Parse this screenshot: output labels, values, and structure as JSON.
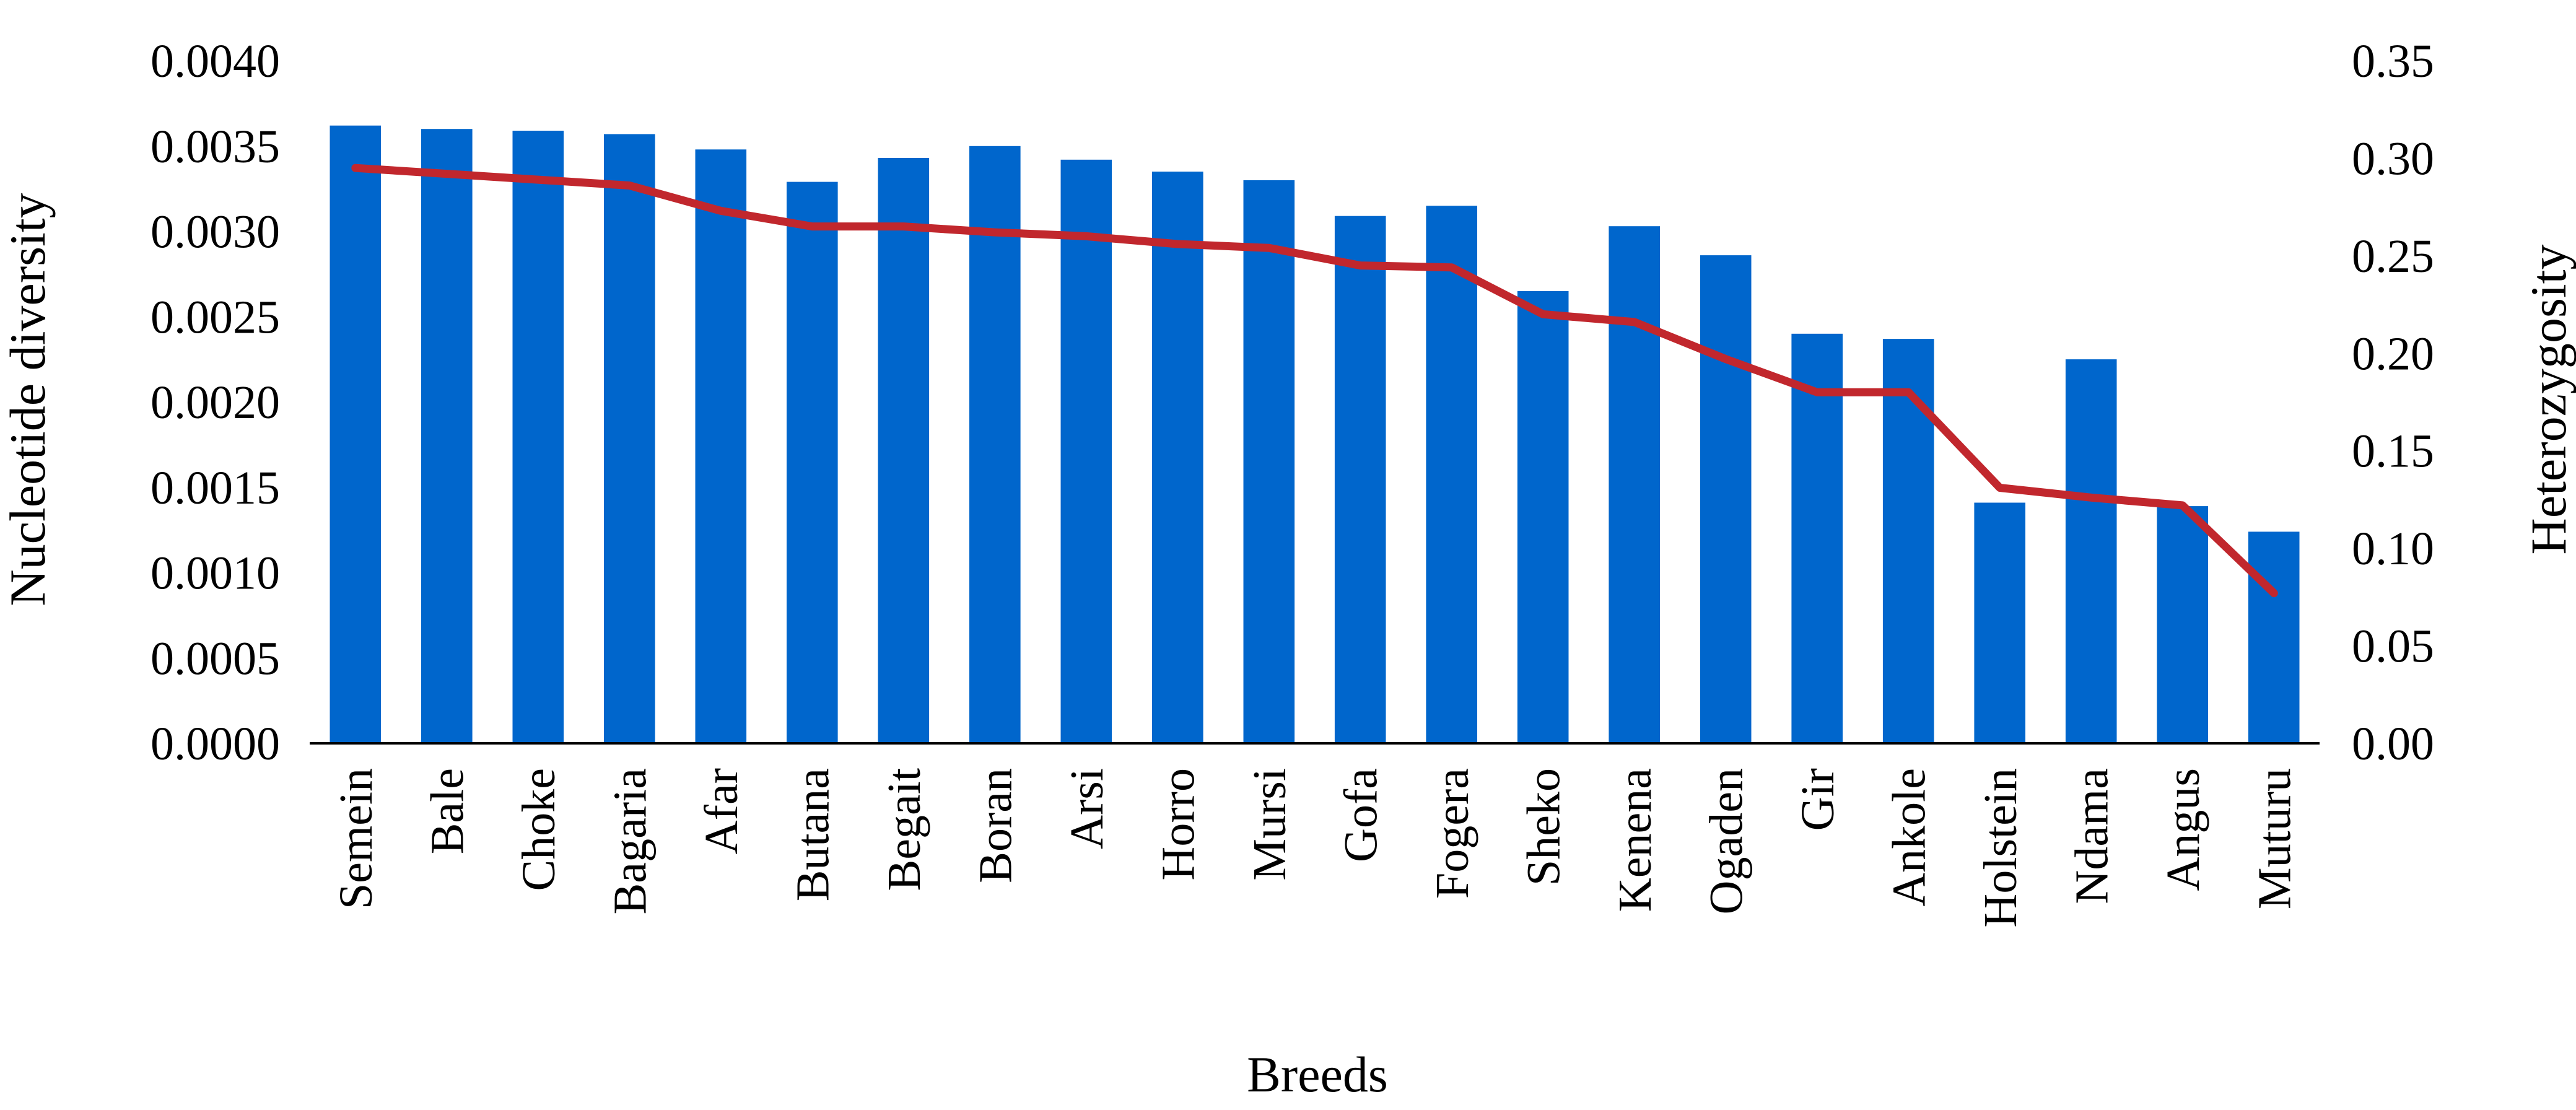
{
  "chart_data": {
    "type": "bar",
    "title": "",
    "xlabel": "Breeds",
    "ylabel": "Nucleotide diversity",
    "y2label": "Heterozygosity",
    "categories": [
      "Semein",
      "Bale",
      "Choke",
      "Bagaria",
      "Afar",
      "Butana",
      "Begait",
      "Boran",
      "Arsi",
      "Horro",
      "Mursi",
      "Gofa",
      "Fogera",
      "Sheko",
      "Kenena",
      "Ogaden",
      "Gir",
      "Ankole",
      "Holstein",
      "Ndama",
      "Angus",
      "Muturu"
    ],
    "ylim": [
      0,
      0.004
    ],
    "y2lim": [
      0,
      0.35
    ],
    "yticks": [
      "0.0000",
      "0.0005",
      "0.0010",
      "0.0015",
      "0.0020",
      "0.0025",
      "0.0030",
      "0.0035",
      "0.0040"
    ],
    "y2ticks": [
      "0.00",
      "0.05",
      "0.10",
      "0.15",
      "0.20",
      "0.25",
      "0.30",
      "0.35"
    ],
    "grid": false,
    "legend": "none",
    "series": [
      {
        "type": "bar",
        "axis": "left",
        "color": "#0066cc",
        "values": [
          0.00362,
          0.0036,
          0.00359,
          0.00357,
          0.00348,
          0.00329,
          0.00343,
          0.0035,
          0.00342,
          0.00335,
          0.0033,
          0.00309,
          0.00315,
          0.00265,
          0.00303,
          0.00286,
          0.0024,
          0.00237,
          0.00141,
          0.00225,
          0.00139,
          0.00124
        ]
      },
      {
        "type": "line",
        "axis": "right",
        "color": "#c1272d",
        "values": [
          0.295,
          0.292,
          0.289,
          0.286,
          0.273,
          0.265,
          0.265,
          0.262,
          0.26,
          0.256,
          0.254,
          0.245,
          0.244,
          0.22,
          0.216,
          0.197,
          0.18,
          0.18,
          0.131,
          0.126,
          0.122,
          0.077
        ]
      }
    ]
  }
}
